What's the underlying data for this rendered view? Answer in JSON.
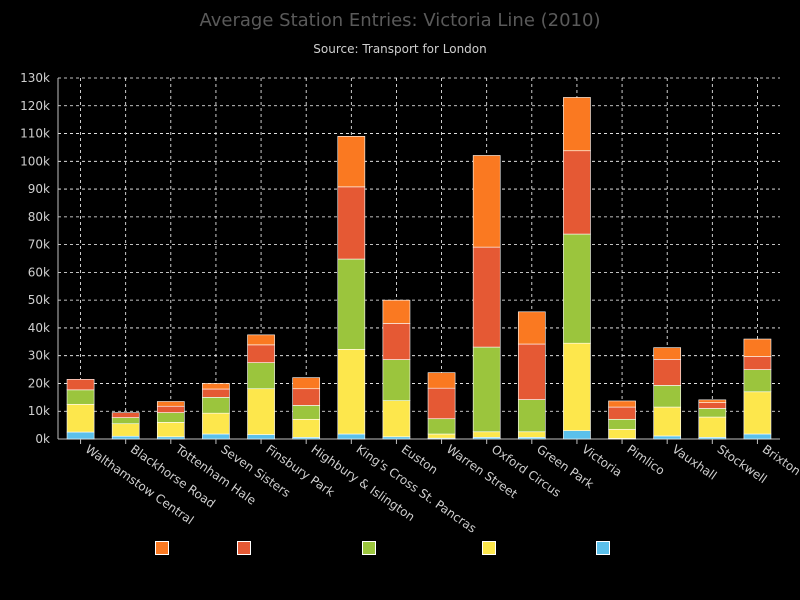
{
  "chart_data": {
    "type": "bar",
    "stacked": true,
    "title": "Average Station Entries: Victoria Line (2010)",
    "subtitle": "Source: Transport for London",
    "xlabel": "",
    "ylabel": "",
    "ylim": [
      0,
      130000
    ],
    "y_ticks": [
      "0k",
      "10k",
      "20k",
      "30k",
      "40k",
      "50k",
      "60k",
      "70k",
      "80k",
      "90k",
      "100k",
      "110k",
      "120k",
      "130k"
    ],
    "grid": true,
    "legend_position": "bottom",
    "categories": [
      "Walthamstow Central",
      "Blackhorse Road",
      "Tottenham Hale",
      "Seven Sisters",
      "Finsbury Park",
      "Highbury & Islington",
      "King's Cross St. Pancras",
      "Euston",
      "Warren Street",
      "Oxford Circus",
      "Green Park",
      "Victoria",
      "Pimlico",
      "Vauxhall",
      "Stockwell",
      "Brixton"
    ],
    "series": [
      {
        "color": "#5bc0eb",
        "values": [
          2500,
          1000,
          800,
          1800,
          1600,
          600,
          1800,
          800,
          300,
          600,
          600,
          3000,
          200,
          1100,
          600,
          1800
        ]
      },
      {
        "color": "#fde74c",
        "values": [
          10000,
          4500,
          5200,
          7500,
          16500,
          6500,
          30500,
          13000,
          1500,
          2000,
          2000,
          31500,
          3300,
          10400,
          7300,
          15200
        ]
      },
      {
        "color": "#9bc53d",
        "values": [
          5200,
          2200,
          3500,
          5700,
          9400,
          5000,
          32500,
          14800,
          5500,
          30500,
          11600,
          39300,
          3600,
          7800,
          3100,
          8000
        ]
      },
      {
        "color": "#e55934",
        "values": [
          3800,
          1800,
          2300,
          3000,
          6400,
          6000,
          26000,
          13000,
          11000,
          36000,
          20000,
          30000,
          4400,
          9400,
          2100,
          4700
        ]
      },
      {
        "color": "#fa7921",
        "values": [
          0,
          0,
          1700,
          2000,
          3600,
          4000,
          18200,
          8400,
          5600,
          33000,
          11600,
          19200,
          2200,
          4200,
          1000,
          6300
        ]
      }
    ]
  }
}
